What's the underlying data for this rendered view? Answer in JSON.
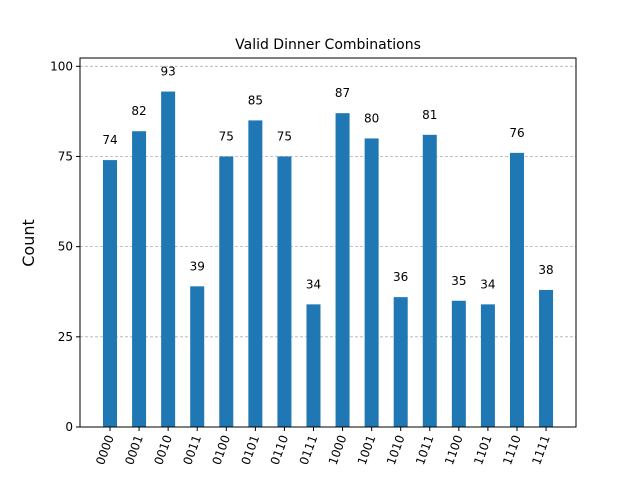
{
  "chart_data": {
    "type": "bar",
    "title": "Valid Dinner Combinations",
    "xlabel": "",
    "ylabel": "Count",
    "categories": [
      "0000",
      "0001",
      "0010",
      "0011",
      "0100",
      "0101",
      "0110",
      "0111",
      "1000",
      "1001",
      "1010",
      "1011",
      "1100",
      "1101",
      "1110",
      "1111"
    ],
    "values": [
      74,
      82,
      93,
      39,
      75,
      85,
      75,
      34,
      87,
      80,
      36,
      81,
      35,
      34,
      76,
      38
    ],
    "ylim": [
      0,
      102.3
    ],
    "yticks": [
      0,
      25,
      50,
      75,
      100
    ],
    "grid": "y-dashed",
    "bar_color": "#1f77b4",
    "xtick_rotation": -70
  }
}
